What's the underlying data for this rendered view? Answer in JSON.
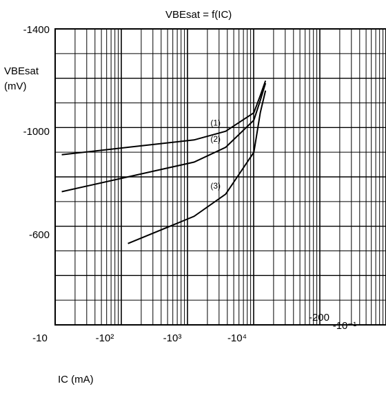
{
  "chart_data": {
    "type": "line",
    "title": "VBEsat = f(IC)",
    "ylabel_line1": "VBEsat",
    "ylabel_line2": "(mV)",
    "xlabel": "IC (mA)",
    "y_ticks": [
      "-1400",
      "-1000",
      "-600",
      "-200"
    ],
    "x_ticks": [
      "-10",
      "-10²",
      "-10³",
      "-10⁴",
      "-10⁻¹"
    ],
    "x_scale": "log (negative)",
    "ylim": [
      -1400,
      -200
    ],
    "grid": true,
    "series": [
      {
        "name": "(1)",
        "points": [
          [
            -1,
            -860
          ],
          [
            -10,
            -890
          ],
          [
            -100,
            -920
          ],
          [
            -1000,
            -950
          ],
          [
            -3000,
            -985
          ],
          [
            -8000,
            -1060
          ],
          [
            -10000,
            -1130
          ],
          [
            -12000,
            -1190
          ]
        ]
      },
      {
        "name": "(2)",
        "points": [
          [
            -1,
            -680
          ],
          [
            -10,
            -740
          ],
          [
            -100,
            -800
          ],
          [
            -1000,
            -860
          ],
          [
            -3000,
            -920
          ],
          [
            -8000,
            -1030
          ],
          [
            -10000,
            -1110
          ],
          [
            -12000,
            -1180
          ]
        ]
      },
      {
        "name": "(3)",
        "points": [
          [
            -100,
            -530
          ],
          [
            -1000,
            -640
          ],
          [
            -3000,
            -730
          ],
          [
            -8000,
            -900
          ],
          [
            -10000,
            -1060
          ],
          [
            -12000,
            -1150
          ]
        ]
      }
    ]
  }
}
